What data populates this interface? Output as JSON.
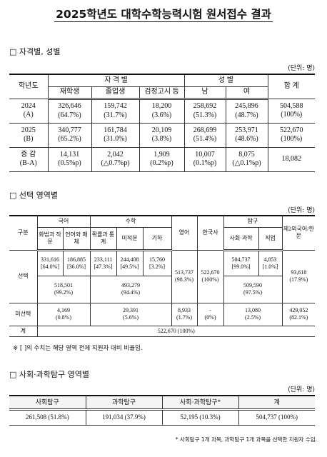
{
  "title": "2025학년도 대학수학능력시험 원서접수 결과",
  "section1": {
    "heading": "□ 자격별, 성별",
    "unit": "(단위: 명)",
    "header": {
      "year": "학년도",
      "qualification": "자 격 별",
      "gender": "성 별",
      "total": "합 계",
      "columns": [
        "재학생",
        "졸업생",
        "검정고시 등",
        "남",
        "여"
      ]
    },
    "rows": [
      {
        "label": [
          "2024",
          "(A)"
        ],
        "cells": [
          [
            "326,646",
            "(64.7%)"
          ],
          [
            "159,742",
            "(31.7%)"
          ],
          [
            "18,200",
            "(3.6%)"
          ],
          [
            "258,692",
            "(51.3%)"
          ],
          [
            "245,896",
            "(48.7%)"
          ],
          [
            "504,588",
            "(100%)"
          ]
        ]
      },
      {
        "label": [
          "2025",
          "(B)"
        ],
        "cells": [
          [
            "340,777",
            "(65.2%)"
          ],
          [
            "161,784",
            "(31.0%)"
          ],
          [
            "20,109",
            "(3.8%)"
          ],
          [
            "268,699",
            "(51.4%)"
          ],
          [
            "253,971",
            "(48.6%)"
          ],
          [
            "522,670",
            "(100%)"
          ]
        ]
      },
      {
        "label": [
          "증 감",
          "(B-A)"
        ],
        "cells": [
          [
            "14,131",
            "(0.5%p)"
          ],
          [
            "2,042",
            "(△0.7%p)"
          ],
          [
            "1,909",
            "(0.2%p)"
          ],
          [
            "10,007",
            "(0.1%p)"
          ],
          [
            "8,075",
            "(△0.1%p)"
          ],
          [
            "18,082"
          ]
        ]
      }
    ]
  },
  "section2": {
    "heading": "□ 선택 영역별",
    "unit": "(단위: 명)",
    "header": {
      "division": "구분",
      "korean": "국어",
      "math": "수학",
      "english": "영어",
      "korean_history": "한국사",
      "inquiry": "탐구",
      "second_language": "제2외국어/한문",
      "korean_sub": [
        "화법과 작문",
        "언어와 매체"
      ],
      "math_sub": [
        "확률과 통계",
        "미적분",
        "기하"
      ],
      "inquiry_sub": [
        "사회·과학",
        "직업"
      ]
    },
    "selected": {
      "label": "선택",
      "subjects": [
        {
          "value": "331,616",
          "share": "[64.0%]"
        },
        {
          "value": "186,885",
          "share": "[36.0%]"
        },
        {
          "value": "233,111",
          "share": "[47.3%]"
        },
        {
          "value": "244,408",
          "share": "[49.5%]"
        },
        {
          "value": "15,760",
          "share": "[3.2%]"
        }
      ],
      "inquiry_subjects": [
        {
          "value": "504,737",
          "share": "[99.0%]"
        },
        {
          "value": "4,853",
          "share": "[1.0%]"
        }
      ],
      "korean_total": {
        "value": "518,501",
        "share": "(99.2%)"
      },
      "math_total": {
        "value": "493,279",
        "share": "(94.4%)"
      },
      "english": {
        "value": "513,737",
        "share": "(98.3%)"
      },
      "korean_history": {
        "value": "522,670",
        "share": "(100%)"
      },
      "inquiry_total": {
        "value": "509,590",
        "share": "(97.5%)"
      },
      "second_language": {
        "value": "93,618",
        "share": "(17.9%)"
      }
    },
    "not_selected": {
      "label": "미선택",
      "korean": {
        "value": "4,169",
        "share": "(0.8%)"
      },
      "math": {
        "value": "29,391",
        "share": "(5.6%)"
      },
      "english": {
        "value": "8,933",
        "share": "(1.7%)"
      },
      "korean_history": {
        "value": "-",
        "share": "(0%)"
      },
      "inquiry": {
        "value": "13,080",
        "share": "(2.5%)"
      },
      "second_language": {
        "value": "429,052",
        "share": "(82.1%)"
      }
    },
    "total": {
      "label": "계",
      "value": "522,670 (100%)"
    },
    "note": "※ [ ]의 수치는 해당 영역 전체 지원자 대비 비율임."
  },
  "section3": {
    "heading": "□ 사회·과학탐구 영역별",
    "unit": "(단위: 명)",
    "columns": [
      "사회탐구",
      "과학탐구",
      "사회·과학탐구*",
      "계"
    ],
    "values": [
      "261,508 (51.8%)",
      "191,034 (37.9%)",
      "52,195 (10.3%)",
      "504,737 (100%)"
    ],
    "footnote": "* 사회탐구 1개 과목, 과학탐구 1개 과목을 선택한 지원자 수임."
  }
}
